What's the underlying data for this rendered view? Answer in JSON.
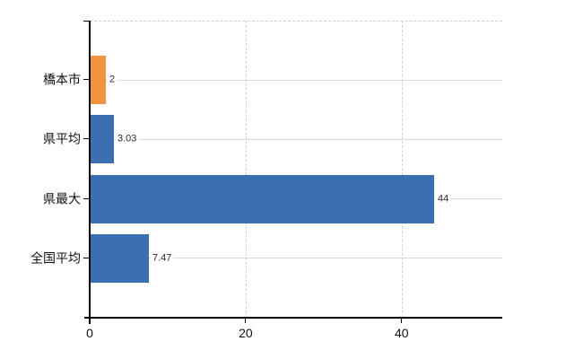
{
  "chart_data": {
    "type": "bar",
    "orientation": "horizontal",
    "title": "",
    "xlabel": "",
    "ylabel": "",
    "categories": [
      "橋本市",
      "県平均",
      "県最大",
      "全国平均"
    ],
    "values": [
      2,
      3.03,
      44,
      7.47
    ],
    "value_labels": [
      "2",
      "3.03",
      "44",
      "7.47"
    ],
    "bar_colors": [
      "#F0923F",
      "#3A70B2",
      "#3A70B2",
      "#3A70B2"
    ],
    "x_ticks": [
      0,
      20,
      40
    ],
    "x_tick_labels": [
      "0",
      "20",
      "40"
    ],
    "xlim": [
      0,
      52.9
    ],
    "grid": true,
    "legend": false
  },
  "style": {
    "background": "#ffffff",
    "bar_blue": "#3A70B2",
    "bar_orange": "#F0923F",
    "h_grid_color": "#d5ddd5",
    "v_grid_color": "#ccd4cc",
    "axis_color": "#000000",
    "label_color": "#111111",
    "value_label_color": "#2b2b2b"
  }
}
